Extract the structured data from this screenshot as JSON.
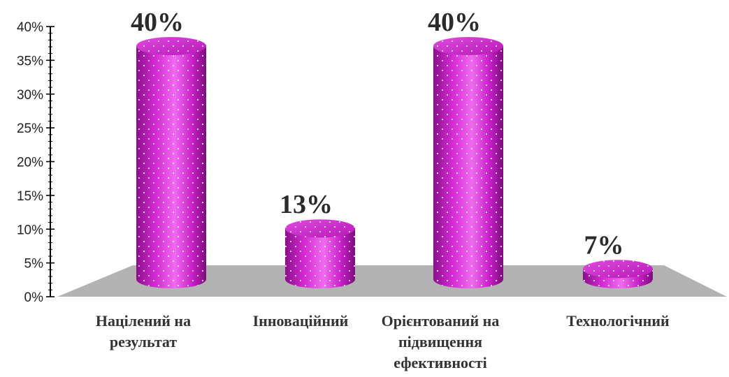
{
  "chart_data": {
    "type": "bar",
    "categories": [
      [
        "Націлений на",
        "результат"
      ],
      [
        "Інноваційний"
      ],
      [
        "Орієнтований на",
        "підвищення",
        "ефективності"
      ],
      [
        "Технологічний"
      ]
    ],
    "values": [
      40,
      13,
      40,
      7
    ],
    "data_labels": [
      "40%",
      "13%",
      "40%",
      "7%"
    ],
    "y_ticks": [
      "0%",
      "5%",
      "10%",
      "15%",
      "20%",
      "25%",
      "30%",
      "35%",
      "40%"
    ],
    "ylim": [
      0,
      40
    ],
    "grid": false,
    "legend": "none",
    "title": "",
    "xlabel": "",
    "ylabel": "",
    "colors": {
      "bar_main": "#c81fc8",
      "bar_light": "#f06af0",
      "bar_dark": "#8a0f8a",
      "floor": "#b3b3b3",
      "axis": "#000000"
    }
  }
}
